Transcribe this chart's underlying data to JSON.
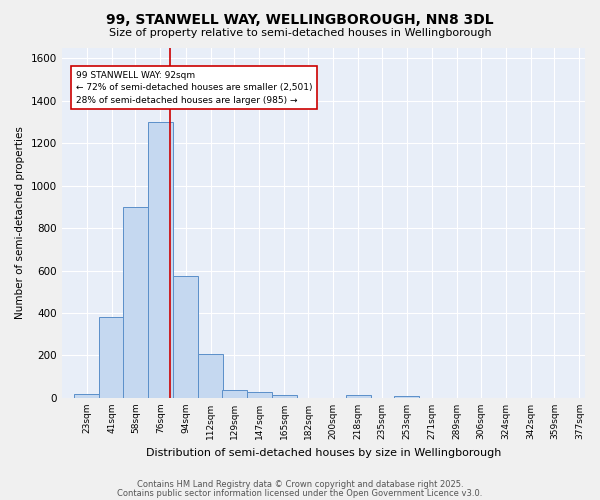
{
  "title": "99, STANWELL WAY, WELLINGBOROUGH, NN8 3DL",
  "subtitle": "Size of property relative to semi-detached houses in Wellingborough",
  "xlabel": "Distribution of semi-detached houses by size in Wellingborough",
  "ylabel": "Number of semi-detached properties",
  "bin_labels": [
    "23sqm",
    "41sqm",
    "58sqm",
    "76sqm",
    "94sqm",
    "112sqm",
    "129sqm",
    "147sqm",
    "165sqm",
    "182sqm",
    "200sqm",
    "218sqm",
    "235sqm",
    "253sqm",
    "271sqm",
    "289sqm",
    "306sqm",
    "324sqm",
    "342sqm",
    "359sqm",
    "377sqm"
  ],
  "bin_left_edges": [
    23,
    41,
    58,
    76,
    94,
    112,
    129,
    147,
    165,
    182,
    200,
    218,
    235,
    253,
    271,
    289,
    306,
    324,
    342,
    359,
    377
  ],
  "bin_width": 18,
  "bar_values": [
    20,
    380,
    900,
    1300,
    575,
    205,
    35,
    30,
    12,
    0,
    0,
    15,
    0,
    10,
    0,
    0,
    0,
    0,
    0,
    0,
    0
  ],
  "bar_color": "#c5d8f0",
  "bar_edge_color": "#5b8fc9",
  "property_line_x": 92,
  "property_line_color": "#cc0000",
  "annotation_line1": "99 STANWELL WAY: 92sqm",
  "annotation_line2": "← 72% of semi-detached houses are smaller (2,501)",
  "annotation_line3": "28% of semi-detached houses are larger (985) →",
  "annotation_box_color": "#ffffff",
  "annotation_box_edge": "#cc0000",
  "ylim": [
    0,
    1650
  ],
  "yticks": [
    0,
    200,
    400,
    600,
    800,
    1000,
    1200,
    1400,
    1600
  ],
  "xlim_left": 14,
  "xlim_right": 390,
  "plot_bg_color": "#e8eef8",
  "fig_bg_color": "#f0f0f0",
  "grid_color": "#ffffff",
  "footer_line1": "Contains HM Land Registry data © Crown copyright and database right 2025.",
  "footer_line2": "Contains public sector information licensed under the Open Government Licence v3.0."
}
